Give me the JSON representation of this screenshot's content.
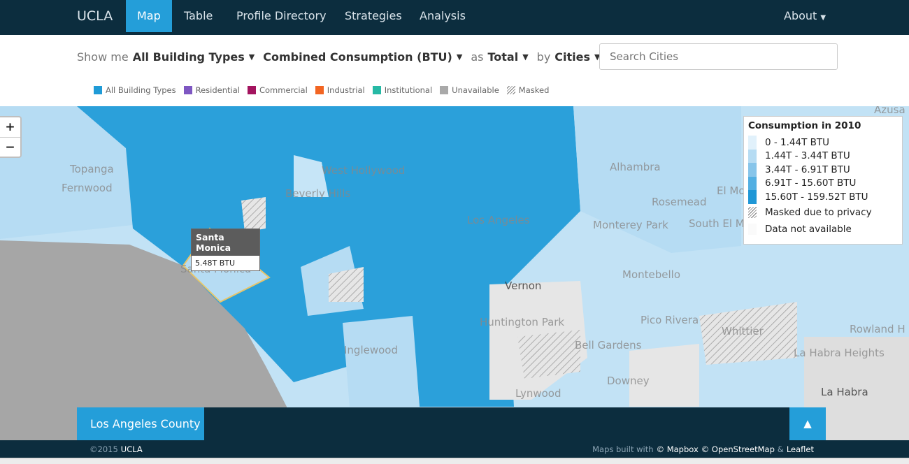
{
  "nav": {
    "brand": "UCLA",
    "items": [
      "Map",
      "Table",
      "Profile Directory",
      "Strategies",
      "Analysis"
    ],
    "about": "About"
  },
  "filters": {
    "show_me": "Show me",
    "building": "All Building Types",
    "metric": "Combined Consumption (BTU)",
    "as": "as",
    "mode": "Total",
    "by": "by",
    "unit": "Cities",
    "search_placeholder": "Search Cities"
  },
  "building_legend": [
    {
      "label": "All Building Types",
      "color": "#1f9bd7"
    },
    {
      "label": "Residential",
      "color": "#7e57c2"
    },
    {
      "label": "Commercial",
      "color": "#a3145f"
    },
    {
      "label": "Industrial",
      "color": "#f26522"
    },
    {
      "label": "Institutional",
      "color": "#26b9a5"
    },
    {
      "label": "Unavailable",
      "color": "#a9a9a9"
    },
    {
      "label": "Masked",
      "color": null
    }
  ],
  "map": {
    "zoom_in": "+",
    "zoom_out": "−",
    "places": [
      "Topanga",
      "Fernwood",
      "West Hollywood",
      "Beverly Hills",
      "Los Angeles",
      "Alhambra",
      "Rosemead",
      "El Mo",
      "Monterey Park",
      "South El M",
      "Montebello",
      "Vernon",
      "Huntington Park",
      "Pico Rivera",
      "Whittier",
      "Bell Gardens",
      "Inglewood",
      "Downey",
      "Lynwood",
      "La Habra Heights",
      "La Habra",
      "Azusa",
      "Rowland H",
      "Santa Monica"
    ],
    "tooltip": {
      "title": "Santa Monica",
      "value": "5.48T BTU"
    },
    "legend": {
      "title": "Consumption in 2010",
      "classes": [
        {
          "label": "0 - 1.44T BTU",
          "color": "#e1f1fb"
        },
        {
          "label": "1.44T - 3.44T BTU",
          "color": "#b6dcf3"
        },
        {
          "label": "3.44T - 6.91T BTU",
          "color": "#87c5ea"
        },
        {
          "label": "6.91T - 15.60T BTU",
          "color": "#52afe2"
        },
        {
          "label": "15.60T - 159.52T BTU",
          "color": "#1f97d6"
        }
      ],
      "masked": "Masked due to privacy",
      "na": "Data not available"
    }
  },
  "panel": {
    "title": "Los Angeles County",
    "toggle": "▲"
  },
  "footer": {
    "copyright": "©2015",
    "org": "UCLA",
    "built": "Maps built with",
    "mapbox": "© Mapbox",
    "osm": "© OpenStreetMap",
    "amp": "&",
    "leaflet": "Leaflet"
  }
}
